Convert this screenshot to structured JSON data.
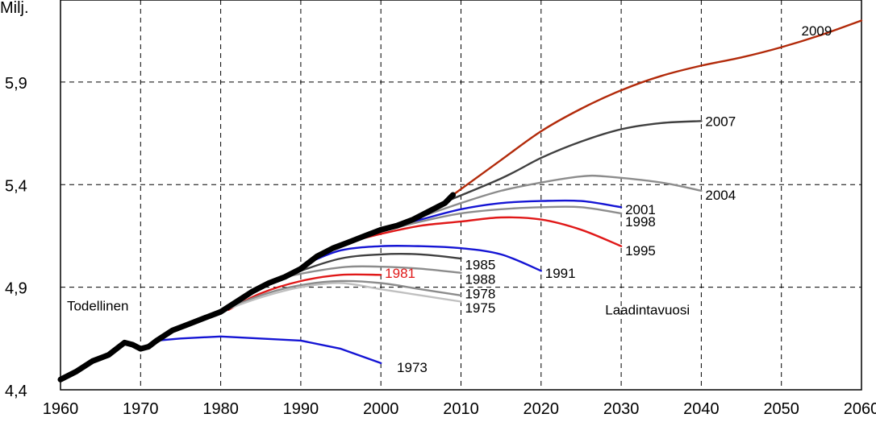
{
  "chart_data": {
    "type": "line",
    "ylabel": "Milj.",
    "xlim": [
      1960,
      2060
    ],
    "ylim": [
      4.4,
      6.3
    ],
    "x_ticks": [
      "1960",
      "1970",
      "1980",
      "1990",
      "2000",
      "2010",
      "2020",
      "2030",
      "2040",
      "2050",
      "2060"
    ],
    "y_ticks": [
      "4,4",
      "4,9",
      "5,4",
      "5,9"
    ],
    "grid": true,
    "annotations": {
      "actual_label": "Todellinen",
      "year_of_projection_label": "Laadintavuosi"
    },
    "actual": {
      "name": "Todellinen",
      "color": "#000000",
      "points": [
        [
          1960,
          4.45
        ],
        [
          1962,
          4.49
        ],
        [
          1964,
          4.54
        ],
        [
          1966,
          4.57
        ],
        [
          1968,
          4.63
        ],
        [
          1969,
          4.62
        ],
        [
          1970,
          4.6
        ],
        [
          1971,
          4.61
        ],
        [
          1972,
          4.64
        ],
        [
          1974,
          4.69
        ],
        [
          1976,
          4.72
        ],
        [
          1978,
          4.75
        ],
        [
          1980,
          4.78
        ],
        [
          1982,
          4.83
        ],
        [
          1984,
          4.88
        ],
        [
          1986,
          4.92
        ],
        [
          1988,
          4.95
        ],
        [
          1990,
          4.99
        ],
        [
          1992,
          5.05
        ],
        [
          1994,
          5.09
        ],
        [
          1996,
          5.12
        ],
        [
          1998,
          5.15
        ],
        [
          2000,
          5.18
        ],
        [
          2002,
          5.2
        ],
        [
          2004,
          5.23
        ],
        [
          2006,
          5.27
        ],
        [
          2008,
          5.31
        ],
        [
          2009,
          5.35
        ]
      ]
    },
    "series": [
      {
        "name": "2009",
        "color": "#b22a0a",
        "points": [
          [
            2009,
            5.35
          ],
          [
            2015,
            5.52
          ],
          [
            2020,
            5.66
          ],
          [
            2025,
            5.77
          ],
          [
            2030,
            5.86
          ],
          [
            2035,
            5.93
          ],
          [
            2040,
            5.98
          ],
          [
            2045,
            6.02
          ],
          [
            2050,
            6.07
          ],
          [
            2055,
            6.13
          ],
          [
            2060,
            6.2
          ]
        ]
      },
      {
        "name": "2007",
        "color": "#404040",
        "points": [
          [
            2007,
            5.3
          ],
          [
            2015,
            5.43
          ],
          [
            2020,
            5.53
          ],
          [
            2025,
            5.61
          ],
          [
            2030,
            5.67
          ],
          [
            2035,
            5.7
          ],
          [
            2040,
            5.71
          ]
        ]
      },
      {
        "name": "2004",
        "color": "#8c8c8c",
        "points": [
          [
            2004,
            5.23
          ],
          [
            2010,
            5.31
          ],
          [
            2015,
            5.37
          ],
          [
            2020,
            5.41
          ],
          [
            2025,
            5.44
          ],
          [
            2028,
            5.44
          ],
          [
            2035,
            5.41
          ],
          [
            2040,
            5.37
          ]
        ]
      },
      {
        "name": "2001",
        "color": "#1414d4",
        "points": [
          [
            2001,
            5.19
          ],
          [
            2005,
            5.23
          ],
          [
            2010,
            5.28
          ],
          [
            2015,
            5.31
          ],
          [
            2020,
            5.32
          ],
          [
            2025,
            5.32
          ],
          [
            2030,
            5.29
          ]
        ]
      },
      {
        "name": "1998",
        "color": "#8c8c8c",
        "points": [
          [
            1998,
            5.15
          ],
          [
            2005,
            5.22
          ],
          [
            2010,
            5.26
          ],
          [
            2015,
            5.28
          ],
          [
            2020,
            5.29
          ],
          [
            2025,
            5.29
          ],
          [
            2030,
            5.26
          ]
        ]
      },
      {
        "name": "1995",
        "color": "#e01818",
        "points": [
          [
            1995,
            5.11
          ],
          [
            2000,
            5.16
          ],
          [
            2005,
            5.2
          ],
          [
            2010,
            5.22
          ],
          [
            2015,
            5.24
          ],
          [
            2020,
            5.23
          ],
          [
            2025,
            5.18
          ],
          [
            2030,
            5.1
          ]
        ]
      },
      {
        "name": "1991",
        "color": "#1414d4",
        "points": [
          [
            1991,
            5.02
          ],
          [
            1995,
            5.08
          ],
          [
            2000,
            5.1
          ],
          [
            2005,
            5.1
          ],
          [
            2010,
            5.09
          ],
          [
            2015,
            5.06
          ],
          [
            2020,
            4.98
          ]
        ]
      },
      {
        "name": "1985",
        "color": "#404040",
        "points": [
          [
            1985,
            4.91
          ],
          [
            1990,
            4.98
          ],
          [
            1995,
            5.04
          ],
          [
            2000,
            5.06
          ],
          [
            2005,
            5.06
          ],
          [
            2010,
            5.04
          ]
        ]
      },
      {
        "name": "1988",
        "color": "#8c8c8c",
        "points": [
          [
            1988,
            4.95
          ],
          [
            1992,
            4.98
          ],
          [
            1996,
            5.0
          ],
          [
            2000,
            5.0
          ],
          [
            2005,
            4.99
          ],
          [
            2010,
            4.97
          ]
        ]
      },
      {
        "name": "1981",
        "color": "#e01818",
        "points": [
          [
            1981,
            4.79
          ],
          [
            1985,
            4.87
          ],
          [
            1990,
            4.93
          ],
          [
            1995,
            4.96
          ],
          [
            2000,
            4.96
          ]
        ]
      },
      {
        "name": "1978",
        "color": "#8c8c8c",
        "points": [
          [
            1978,
            4.75
          ],
          [
            1985,
            4.86
          ],
          [
            1990,
            4.91
          ],
          [
            1995,
            4.93
          ],
          [
            2000,
            4.92
          ],
          [
            2005,
            4.89
          ],
          [
            2010,
            4.86
          ]
        ]
      },
      {
        "name": "1975",
        "color": "#c0c0c0",
        "points": [
          [
            1975,
            4.7
          ],
          [
            1980,
            4.78
          ],
          [
            1985,
            4.85
          ],
          [
            1990,
            4.9
          ],
          [
            1995,
            4.92
          ],
          [
            2000,
            4.89
          ],
          [
            2005,
            4.86
          ],
          [
            2010,
            4.83
          ]
        ]
      },
      {
        "name": "1973",
        "color": "#1414d4",
        "points": [
          [
            1972,
            4.64
          ],
          [
            1975,
            4.65
          ],
          [
            1980,
            4.66
          ],
          [
            1990,
            4.64
          ],
          [
            1995,
            4.6
          ],
          [
            2000,
            4.53
          ]
        ]
      }
    ],
    "series_labels": [
      {
        "text": "2009",
        "color": "#000000",
        "x": 2052.5,
        "y": 6.15
      },
      {
        "text": "2007",
        "color": "#000000",
        "x": 2040.5,
        "y": 5.71
      },
      {
        "text": "2004",
        "color": "#000000",
        "x": 2040.5,
        "y": 5.35
      },
      {
        "text": "2001",
        "color": "#000000",
        "x": 2030.5,
        "y": 5.28
      },
      {
        "text": "1998",
        "color": "#000000",
        "x": 2030.5,
        "y": 5.22
      },
      {
        "text": "1995",
        "color": "#000000",
        "x": 2030.5,
        "y": 5.08
      },
      {
        "text": "1991",
        "color": "#000000",
        "x": 2020.5,
        "y": 4.97
      },
      {
        "text": "1985",
        "color": "#000000",
        "x": 2010.5,
        "y": 5.01
      },
      {
        "text": "1988",
        "color": "#000000",
        "x": 2010.5,
        "y": 4.94
      },
      {
        "text": "1981",
        "color": "#e01818",
        "x": 2000.5,
        "y": 4.97
      },
      {
        "text": "1978",
        "color": "#000000",
        "x": 2010.5,
        "y": 4.87
      },
      {
        "text": "1975",
        "color": "#000000",
        "x": 2010.5,
        "y": 4.8
      },
      {
        "text": "1973",
        "color": "#000000",
        "x": 2002,
        "y": 4.51
      }
    ]
  }
}
